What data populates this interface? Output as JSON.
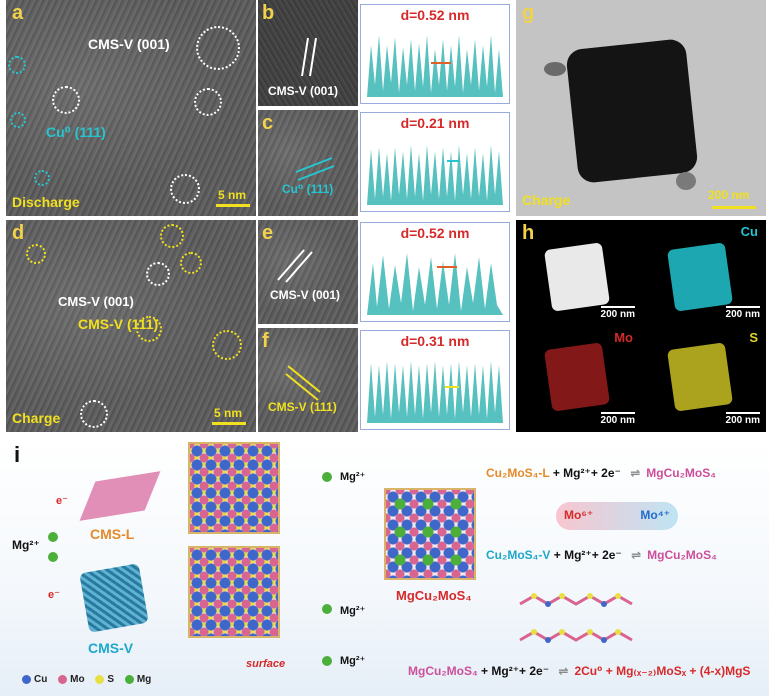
{
  "panels": {
    "a": {
      "letter": "a",
      "label_cms": "CMS-V (001)",
      "label_cu": "Cu⁰ (111)",
      "state": "Discharge",
      "scale": "5 nm"
    },
    "b": {
      "letter": "b",
      "label": "CMS-V (001)",
      "d": "d=0.52 nm"
    },
    "c": {
      "letter": "c",
      "label": "Cu⁰ (111)",
      "d": "d=0.21 nm"
    },
    "d": {
      "letter": "d",
      "label_001": "CMS-V (001)",
      "label_111": "CMS-V (111)",
      "state": "Charge",
      "scale": "5 nm"
    },
    "e": {
      "letter": "e",
      "label": "CMS-V (001)",
      "d": "d=0.52 nm"
    },
    "f": {
      "letter": "f",
      "label": "CMS-V (111)",
      "d": "d=0.31 nm"
    },
    "g": {
      "letter": "g",
      "state": "Charge",
      "scale": "200 nm"
    },
    "h": {
      "letter": "h",
      "maps": [
        {
          "element": "",
          "scale": "200 nm",
          "color": "#e9e9e9"
        },
        {
          "element": "Cu",
          "scale": "200 nm",
          "color": "#22c4cf"
        },
        {
          "element": "Mo",
          "scale": "200 nm",
          "color": "#d42a2a"
        },
        {
          "element": "S",
          "scale": "200 nm",
          "color": "#e0d52a"
        }
      ]
    }
  },
  "schema": {
    "letter": "i",
    "mg_ion": "Mg²⁺",
    "cms_l": "CMS-L",
    "cms_v": "CMS-V",
    "product": "MgCu₂MoS₄",
    "surface": "surface",
    "electrons": [
      "e⁻",
      "e⁻",
      "e⁻"
    ],
    "eq1": {
      "left": "Cu₂MoS₄-L",
      "mid": " + Mg²⁺+ 2e⁻",
      "right": "MgCu₂MoS₄"
    },
    "redox": {
      "mo6": "Mo⁶⁺",
      "mo4": "Mo⁴⁺"
    },
    "eq2": {
      "left": "Cu₂MoS₄-V",
      "mid": " + Mg²⁺+ 2e⁻",
      "right": "MgCu₂MoS₄"
    },
    "eq3": {
      "left": "MgCu₂MoS₄",
      "mid": " + Mg²⁺+ 2e⁻",
      "right": "2Cu⁰ + Mg₍ₓ₋₂₎MoSₓ + (4-x)MgS"
    },
    "legend": [
      {
        "name": "Cu",
        "color": "#3f67c9"
      },
      {
        "name": "Mo",
        "color": "#d8648f"
      },
      {
        "name": "S",
        "color": "#e8e043"
      },
      {
        "name": "Mg",
        "color": "#4caf3a"
      }
    ],
    "colors": {
      "orange": "#e58a2a",
      "cyan": "#1fa8c9",
      "pink": "#cc4f9a",
      "red": "#d62a2a"
    }
  }
}
